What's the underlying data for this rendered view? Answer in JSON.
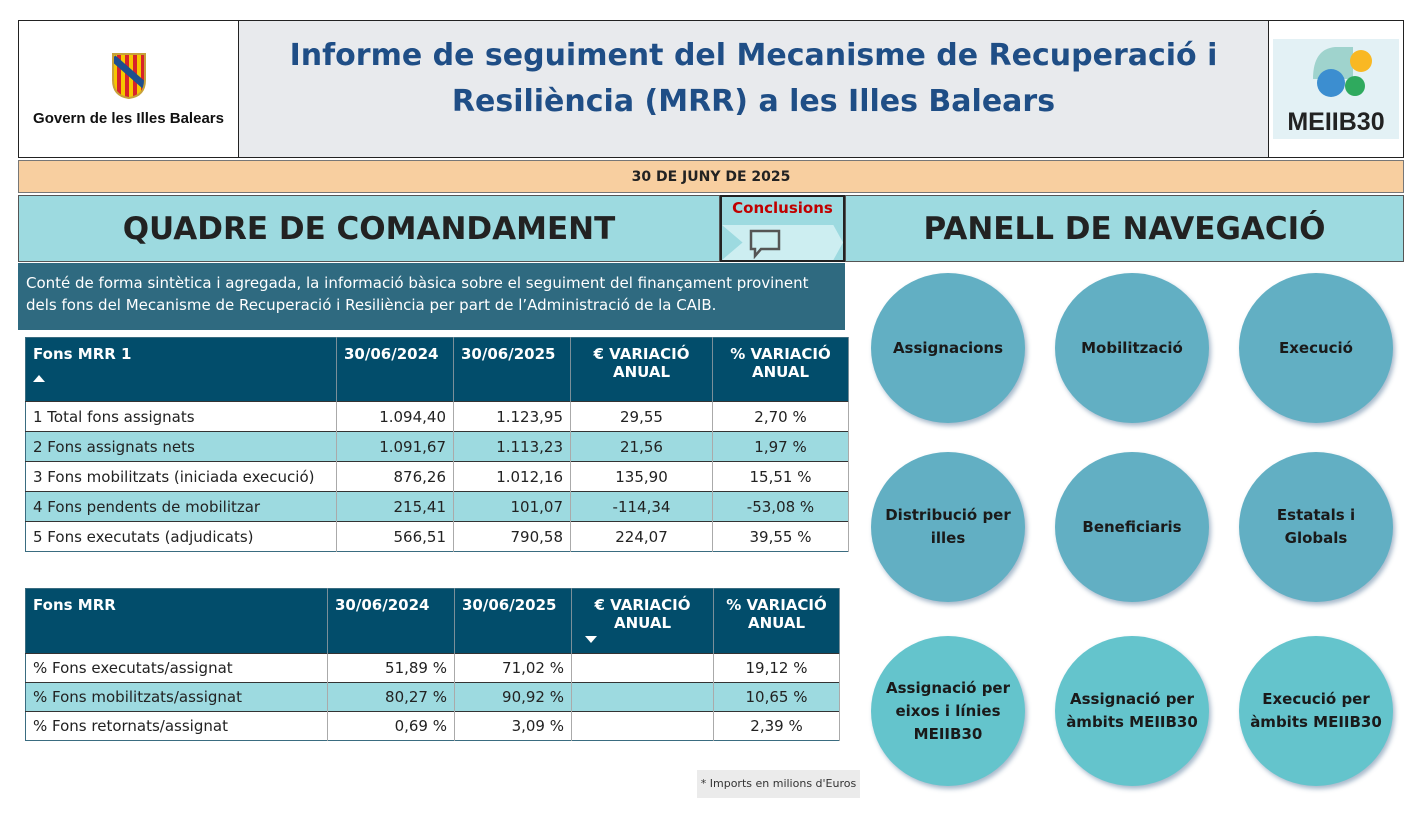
{
  "header": {
    "logo_left_text": "Govern de les Illes Balears",
    "title": "Informe de seguiment del Mecanisme de Recuperació i Resiliència (MRR) a les Illes Balears",
    "logo_right_text": "MEIIB30"
  },
  "date": "30 DE JUNY DE 2025",
  "quadre_title": "QUADRE DE COMANDAMENT",
  "conclusions": {
    "label": "Conclusions",
    "icon": "speech-bubble-icon"
  },
  "panell_title": "PANELL DE NAVEGACIÓ",
  "description": "Conté de forma sintètica i agregada, la informació bàsica sobre el seguiment del finançament provinent dels fons del Mecanisme de Recuperació i Resiliència per part de l’Administració de la CAIB.",
  "table1": {
    "headers": [
      "Fons MRR 1",
      "30/06/2024",
      "30/06/2025",
      "€ VARIACIÓ ANUAL",
      "% VARIACIÓ ANUAL"
    ],
    "rows": [
      [
        "1 Total fons assignats",
        "1.094,40",
        "1.123,95",
        "29,55",
        "2,70 %"
      ],
      [
        "2 Fons assignats nets",
        "1.091,67",
        "1.113,23",
        "21,56",
        "1,97 %"
      ],
      [
        "3 Fons mobilitzats (iniciada execució)",
        "876,26",
        "1.012,16",
        "135,90",
        "15,51 %"
      ],
      [
        "4 Fons pendents de mobilitzar",
        "215,41",
        "101,07",
        "-114,34",
        "-53,08 %"
      ],
      [
        "5 Fons executats (adjudicats)",
        "566,51",
        "790,58",
        "224,07",
        "39,55 %"
      ]
    ]
  },
  "table2": {
    "headers": [
      "Fons MRR",
      "30/06/2024",
      "30/06/2025",
      "€ VARIACIÓ ANUAL",
      "% VARIACIÓ ANUAL"
    ],
    "rows": [
      [
        "% Fons executats/assignat",
        "51,89 %",
        "71,02 %",
        "",
        "19,12 %"
      ],
      [
        "% Fons mobilitzats/assignat",
        "80,27 %",
        "90,92 %",
        "",
        "10,65 %"
      ],
      [
        "% Fons retornats/assignat",
        "0,69 %",
        "3,09 %",
        "",
        "2,39 %"
      ]
    ]
  },
  "nav": [
    "Assignacions",
    "Mobilització",
    "Execució",
    "Distribució per illes",
    "Beneficiaris",
    "Estatals i Globals",
    "Assignació per eixos i línies MEIIB30",
    "Assignació per àmbits MEIIB30",
    "Execució per àmbits MEIIB30"
  ],
  "note": "* Imports en milions d'Euros",
  "colors": {
    "header_dark": "#024D6B",
    "band": "#9DDAE0",
    "date_bar": "#F8CFA0",
    "title": "#1F4E86",
    "circle_a": "#62AFC3",
    "circle_b": "#64C4CC"
  }
}
